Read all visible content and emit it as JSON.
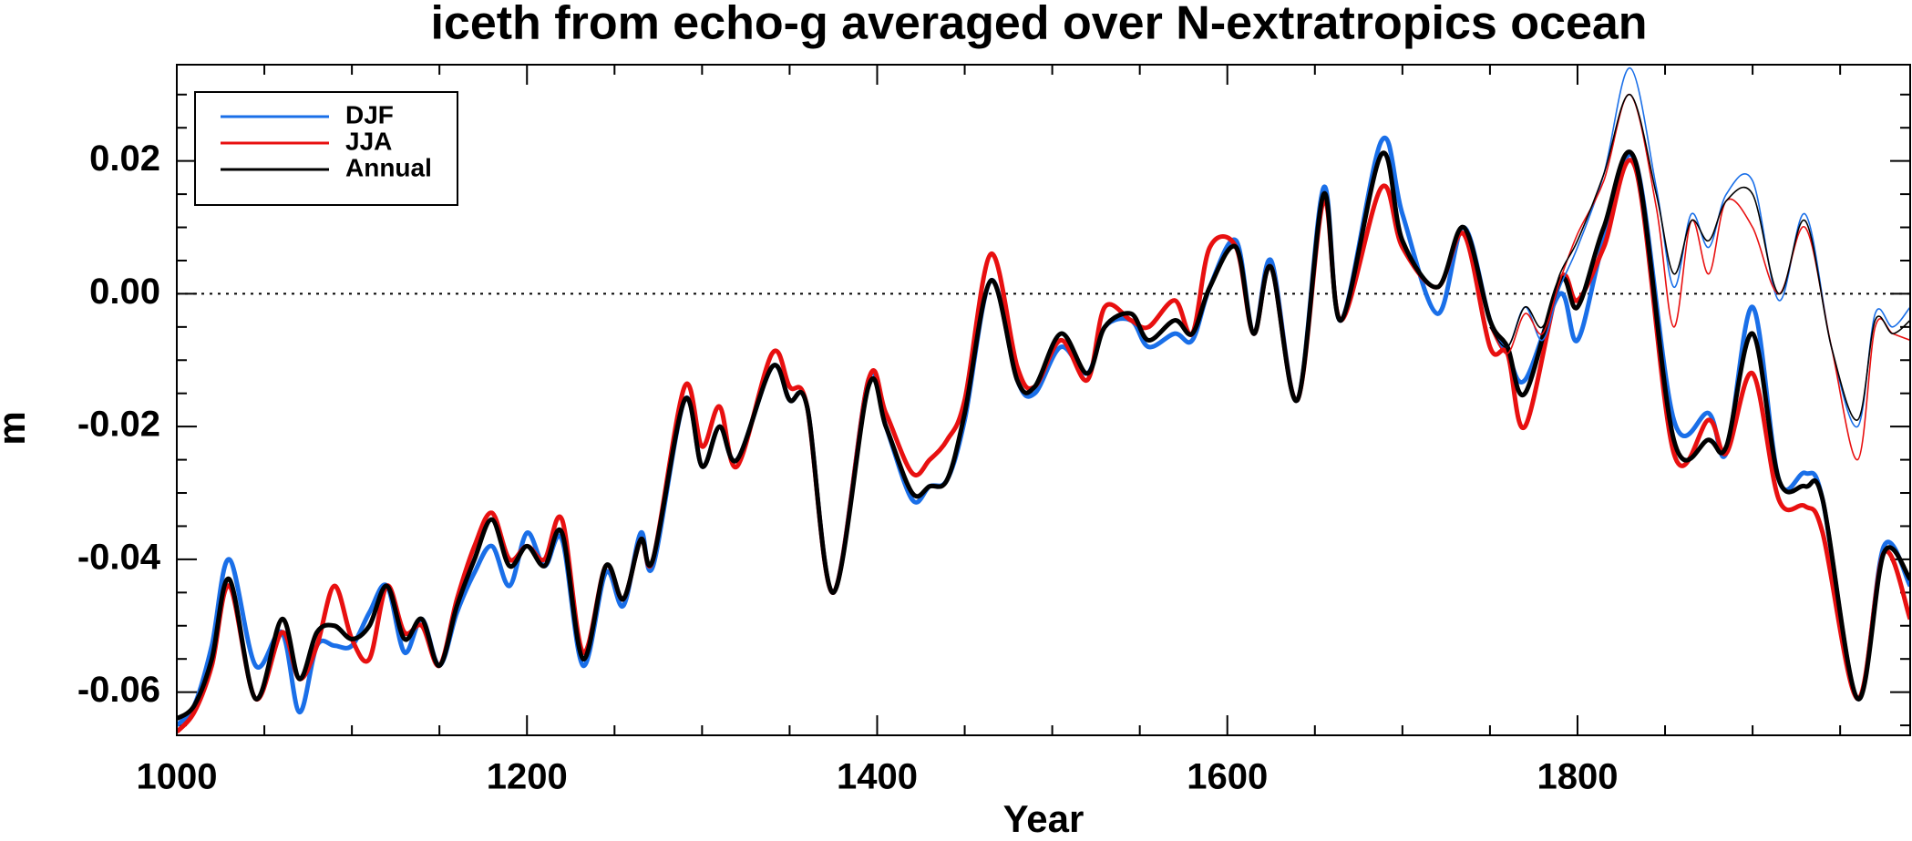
{
  "chart_data": {
    "type": "line",
    "title": "iceth from echo-g averaged over N-extratropics ocean",
    "x_label": "Year",
    "y_label": "m",
    "xlim": [
      1000,
      1990
    ],
    "ylim": [
      -0.0665,
      0.0345
    ],
    "xticks": [
      1000,
      1200,
      1400,
      1600,
      1800
    ],
    "yticks": [
      {
        "value": -0.06,
        "label": "-0.06"
      },
      {
        "value": -0.04,
        "label": "-0.04"
      },
      {
        "value": -0.02,
        "label": "-0.02"
      },
      {
        "value": 0,
        "label": "0.00"
      },
      {
        "value": 0.02,
        "label": "0.02"
      }
    ],
    "xminorticks": [
      1050,
      1100,
      1150,
      1250,
      1300,
      1350,
      1450,
      1500,
      1550,
      1650,
      1700,
      1750,
      1850,
      1900,
      1950
    ],
    "yminorticks": [
      -0.065,
      -0.055,
      -0.05,
      -0.045,
      -0.035,
      -0.03,
      -0.025,
      -0.015,
      -0.01,
      -0.005,
      0.005,
      0.01,
      0.015,
      0.025,
      0.03
    ],
    "reference_line": 0,
    "legend": "upper left",
    "series": [
      {
        "name": "DJF",
        "color": "#1a6fe8",
        "linewidth": 5,
        "x": [
          1000,
          1010,
          1020,
          1030,
          1045,
          1060,
          1070,
          1080,
          1090,
          1100,
          1110,
          1120,
          1130,
          1140,
          1150,
          1160,
          1170,
          1180,
          1190,
          1200,
          1210,
          1220,
          1232,
          1245,
          1255,
          1265,
          1272,
          1290,
          1300,
          1310,
          1320,
          1340,
          1350,
          1360,
          1375,
          1395,
          1405,
          1420,
          1430,
          1440,
          1450,
          1465,
          1480,
          1490,
          1505,
          1520,
          1530,
          1545,
          1555,
          1570,
          1580,
          1590,
          1605,
          1615,
          1625,
          1640,
          1655,
          1665,
          1688,
          1700,
          1720,
          1735,
          1750,
          1760,
          1770,
          1790,
          1800,
          1815,
          1833,
          1855,
          1875,
          1885,
          1900,
          1915,
          1930,
          1940,
          1960,
          1975,
          1990
        ],
        "values": [
          -0.065,
          -0.062,
          -0.053,
          -0.04,
          -0.056,
          -0.051,
          -0.063,
          -0.053,
          -0.053,
          -0.053,
          -0.048,
          -0.044,
          -0.054,
          -0.049,
          -0.056,
          -0.048,
          -0.042,
          -0.038,
          -0.044,
          -0.036,
          -0.041,
          -0.037,
          -0.056,
          -0.042,
          -0.047,
          -0.036,
          -0.041,
          -0.016,
          -0.026,
          -0.02,
          -0.025,
          -0.011,
          -0.016,
          -0.017,
          -0.045,
          -0.013,
          -0.02,
          -0.031,
          -0.029,
          -0.028,
          -0.019,
          0.002,
          -0.013,
          -0.015,
          -0.008,
          -0.012,
          -0.005,
          -0.004,
          -0.008,
          -0.006,
          -0.007,
          0.001,
          0.008,
          -0.006,
          0.005,
          -0.016,
          0.016,
          -0.004,
          0.023,
          0.012,
          -0.003,
          0.01,
          -0.004,
          -0.009,
          -0.013,
          0.0,
          -0.007,
          0.008,
          0.02,
          -0.019,
          -0.018,
          -0.024,
          -0.002,
          -0.028,
          -0.027,
          -0.031,
          -0.061,
          -0.038,
          -0.044
        ]
      },
      {
        "name": "JJA",
        "color": "#e81010",
        "linewidth": 5,
        "x": [
          1000,
          1010,
          1020,
          1030,
          1045,
          1060,
          1070,
          1080,
          1090,
          1100,
          1110,
          1120,
          1130,
          1140,
          1150,
          1160,
          1170,
          1180,
          1190,
          1200,
          1210,
          1220,
          1232,
          1245,
          1255,
          1265,
          1272,
          1290,
          1300,
          1310,
          1320,
          1340,
          1350,
          1360,
          1375,
          1395,
          1405,
          1420,
          1430,
          1440,
          1450,
          1465,
          1480,
          1490,
          1505,
          1520,
          1530,
          1545,
          1555,
          1570,
          1580,
          1590,
          1605,
          1615,
          1625,
          1640,
          1655,
          1665,
          1688,
          1700,
          1720,
          1735,
          1750,
          1760,
          1770,
          1790,
          1800,
          1815,
          1833,
          1855,
          1875,
          1885,
          1900,
          1915,
          1930,
          1940,
          1960,
          1975,
          1990
        ],
        "values": [
          -0.066,
          -0.063,
          -0.056,
          -0.044,
          -0.061,
          -0.051,
          -0.058,
          -0.053,
          -0.044,
          -0.052,
          -0.055,
          -0.044,
          -0.051,
          -0.05,
          -0.056,
          -0.046,
          -0.038,
          -0.033,
          -0.04,
          -0.038,
          -0.04,
          -0.034,
          -0.054,
          -0.041,
          -0.046,
          -0.037,
          -0.04,
          -0.014,
          -0.023,
          -0.017,
          -0.026,
          -0.009,
          -0.014,
          -0.017,
          -0.045,
          -0.013,
          -0.018,
          -0.027,
          -0.025,
          -0.022,
          -0.016,
          0.006,
          -0.011,
          -0.014,
          -0.007,
          -0.013,
          -0.002,
          -0.004,
          -0.005,
          -0.001,
          -0.006,
          0.007,
          0.007,
          -0.006,
          0.004,
          -0.016,
          0.014,
          -0.004,
          0.016,
          0.007,
          0.001,
          0.009,
          -0.008,
          -0.009,
          -0.02,
          0.002,
          -0.001,
          0.007,
          0.019,
          -0.024,
          -0.019,
          -0.024,
          -0.012,
          -0.031,
          -0.032,
          -0.036,
          -0.061,
          -0.039,
          -0.049
        ]
      },
      {
        "name": "Annual",
        "color": "#000000",
        "linewidth": 5,
        "x": [
          1000,
          1010,
          1020,
          1030,
          1045,
          1060,
          1070,
          1080,
          1090,
          1100,
          1110,
          1120,
          1130,
          1140,
          1150,
          1160,
          1170,
          1180,
          1190,
          1200,
          1210,
          1220,
          1232,
          1245,
          1255,
          1265,
          1272,
          1290,
          1300,
          1310,
          1320,
          1340,
          1350,
          1360,
          1375,
          1395,
          1405,
          1420,
          1430,
          1440,
          1450,
          1465,
          1480,
          1490,
          1505,
          1520,
          1530,
          1545,
          1555,
          1570,
          1580,
          1590,
          1605,
          1615,
          1625,
          1640,
          1655,
          1665,
          1688,
          1700,
          1720,
          1735,
          1750,
          1760,
          1770,
          1790,
          1800,
          1815,
          1833,
          1855,
          1875,
          1885,
          1900,
          1915,
          1930,
          1940,
          1960,
          1975,
          1990
        ],
        "values": [
          -0.064,
          -0.062,
          -0.055,
          -0.043,
          -0.061,
          -0.049,
          -0.058,
          -0.051,
          -0.05,
          -0.052,
          -0.05,
          -0.044,
          -0.052,
          -0.049,
          -0.056,
          -0.047,
          -0.04,
          -0.034,
          -0.041,
          -0.038,
          -0.041,
          -0.036,
          -0.055,
          -0.041,
          -0.046,
          -0.037,
          -0.04,
          -0.016,
          -0.026,
          -0.02,
          -0.025,
          -0.011,
          -0.016,
          -0.017,
          -0.045,
          -0.014,
          -0.02,
          -0.03,
          -0.029,
          -0.028,
          -0.018,
          0.002,
          -0.013,
          -0.014,
          -0.006,
          -0.012,
          -0.005,
          -0.003,
          -0.007,
          -0.004,
          -0.006,
          0.001,
          0.007,
          -0.006,
          0.004,
          -0.016,
          0.015,
          -0.004,
          0.021,
          0.008,
          0.001,
          0.01,
          -0.004,
          -0.008,
          -0.015,
          0.002,
          -0.002,
          0.01,
          0.02,
          -0.022,
          -0.022,
          -0.023,
          -0.006,
          -0.028,
          -0.029,
          -0.031,
          -0.061,
          -0.039,
          -0.043
        ]
      },
      {
        "name": "DJF",
        "color": "#1a6fe8",
        "linewidth": 1.6,
        "x": [
          1750,
          1760,
          1770,
          1780,
          1790,
          1800,
          1815,
          1830,
          1845,
          1855,
          1865,
          1875,
          1885,
          1900,
          1915,
          1930,
          1945,
          1960,
          1970,
          1980,
          1990
        ],
        "values": [
          -0.005,
          -0.008,
          -0.002,
          -0.007,
          0.001,
          0.007,
          0.018,
          0.034,
          0.016,
          0.001,
          0.012,
          0.007,
          0.015,
          0.017,
          -0.001,
          0.012,
          -0.008,
          -0.02,
          -0.003,
          -0.005,
          -0.002
        ]
      },
      {
        "name": "JJA",
        "color": "#e81010",
        "linewidth": 1.6,
        "x": [
          1750,
          1760,
          1770,
          1780,
          1790,
          1800,
          1815,
          1830,
          1845,
          1855,
          1865,
          1875,
          1885,
          1900,
          1915,
          1930,
          1945,
          1960,
          1970,
          1980,
          1990
        ],
        "values": [
          -0.005,
          -0.009,
          -0.003,
          -0.006,
          0.002,
          0.009,
          0.017,
          0.03,
          0.013,
          -0.005,
          0.011,
          0.003,
          0.014,
          0.01,
          0.0,
          0.01,
          -0.008,
          -0.025,
          -0.005,
          -0.006,
          -0.007
        ]
      },
      {
        "name": "Annual",
        "color": "#000000",
        "linewidth": 1.6,
        "x": [
          1750,
          1760,
          1770,
          1780,
          1790,
          1800,
          1815,
          1830,
          1845,
          1855,
          1865,
          1875,
          1885,
          1900,
          1915,
          1930,
          1945,
          1960,
          1970,
          1980,
          1990
        ],
        "values": [
          -0.005,
          -0.008,
          -0.002,
          -0.005,
          0.003,
          0.008,
          0.018,
          0.03,
          0.015,
          0.003,
          0.011,
          0.008,
          0.014,
          0.015,
          0.0,
          0.011,
          -0.008,
          -0.019,
          -0.004,
          -0.006,
          -0.004
        ]
      }
    ]
  }
}
